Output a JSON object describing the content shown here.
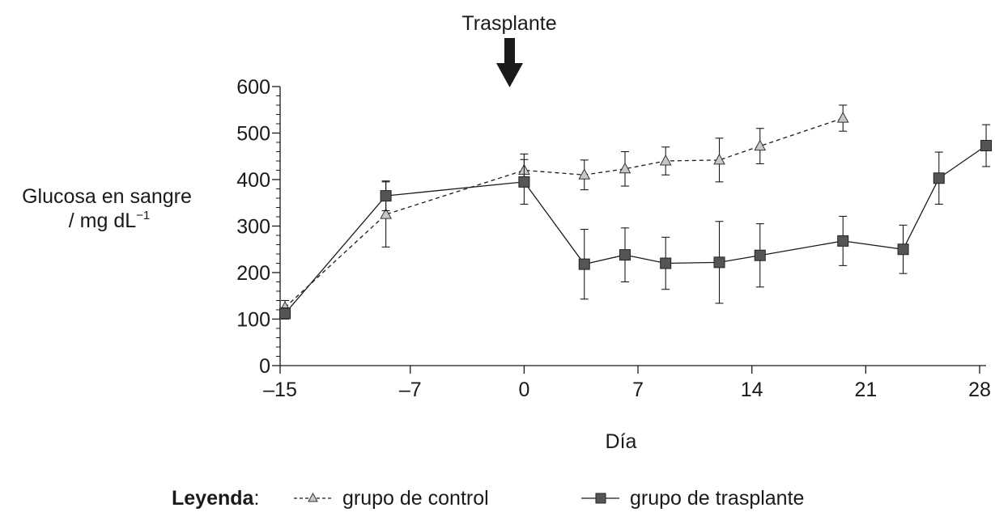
{
  "chart_data": {
    "type": "line",
    "annotation": {
      "label": "Trasplante",
      "x": 0
    },
    "ylabel_line1": "Glucosa en sangre",
    "ylabel_line2": "/ mg dL",
    "ylabel_superscript": "−1",
    "xlabel": "Día",
    "x_ticks": [
      -15,
      -7,
      0,
      7,
      14,
      21,
      28
    ],
    "x_tick_labels": [
      "–15",
      "–7",
      "0",
      "7",
      "14",
      "21",
      "28"
    ],
    "y_ticks": [
      0,
      100,
      200,
      300,
      400,
      500,
      600
    ],
    "y_tick_labels": [
      "0",
      "100",
      "200",
      "300",
      "400",
      "500",
      "600"
    ],
    "xlim": [
      -15,
      28
    ],
    "ylim": [
      0,
      600
    ],
    "y_minor_step": 20,
    "series": [
      {
        "name": "grupo de control",
        "line_style": "dashed",
        "marker": "triangle",
        "marker_color": "#c8c8c8",
        "points": [
          {
            "x": -14.7,
            "y": 125,
            "err": 15
          },
          {
            "x": -8.5,
            "y": 325,
            "err": 70
          },
          {
            "x": 0,
            "y": 420,
            "err": 35
          },
          {
            "x": 3.7,
            "y": 410,
            "err": 32
          },
          {
            "x": 6.2,
            "y": 423,
            "err": 37
          },
          {
            "x": 8.7,
            "y": 440,
            "err": 30
          },
          {
            "x": 12,
            "y": 442,
            "err": 47
          },
          {
            "x": 14.5,
            "y": 472,
            "err": 38
          },
          {
            "x": 19.6,
            "y": 532,
            "err": 28
          }
        ]
      },
      {
        "name": "grupo de trasplante",
        "line_style": "solid",
        "marker": "square",
        "marker_color": "#555555",
        "points": [
          {
            "x": -14.7,
            "y": 112,
            "err": 12
          },
          {
            "x": -8.5,
            "y": 365,
            "err": 32
          },
          {
            "x": 0,
            "y": 395,
            "err": 48
          },
          {
            "x": 3.7,
            "y": 218,
            "err": 75
          },
          {
            "x": 6.2,
            "y": 238,
            "err": 58
          },
          {
            "x": 8.7,
            "y": 220,
            "err": 56
          },
          {
            "x": 12,
            "y": 222,
            "err": 88
          },
          {
            "x": 14.5,
            "y": 237,
            "err": 68
          },
          {
            "x": 19.6,
            "y": 268,
            "err": 53
          },
          {
            "x": 23.3,
            "y": 250,
            "err": 52
          },
          {
            "x": 25.5,
            "y": 403,
            "err": 56
          },
          {
            "x": 28.4,
            "y": 473,
            "err": 45
          }
        ]
      }
    ],
    "legend": {
      "title": "Leyenda",
      "separator": ":",
      "placement": "bottom",
      "items": [
        "grupo de control",
        "grupo de trasplante"
      ]
    }
  }
}
